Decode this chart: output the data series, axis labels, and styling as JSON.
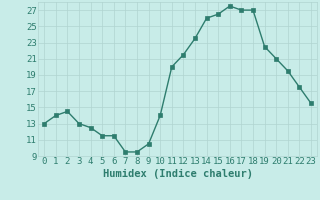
{
  "x": [
    0,
    1,
    2,
    3,
    4,
    5,
    6,
    7,
    8,
    9,
    10,
    11,
    12,
    13,
    14,
    15,
    16,
    17,
    18,
    19,
    20,
    21,
    22,
    23
  ],
  "y": [
    13,
    14,
    14.5,
    13,
    12.5,
    11.5,
    11.5,
    9.5,
    9.5,
    10.5,
    14,
    20,
    21.5,
    23.5,
    26,
    26.5,
    27.5,
    27,
    27,
    22.5,
    21,
    19.5,
    17.5,
    15.5
  ],
  "line_color": "#2e7d6e",
  "marker_color": "#2e7d6e",
  "bg_color": "#c8ece8",
  "grid_color": "#b0d4d0",
  "xlabel": "Humidex (Indice chaleur)",
  "xlim": [
    -0.5,
    23.5
  ],
  "ylim": [
    9,
    28
  ],
  "yticks": [
    9,
    11,
    13,
    15,
    17,
    19,
    21,
    23,
    25,
    27
  ],
  "xtick_labels": [
    "0",
    "1",
    "2",
    "3",
    "4",
    "5",
    "6",
    "7",
    "8",
    "9",
    "10",
    "11",
    "12",
    "13",
    "14",
    "15",
    "16",
    "17",
    "18",
    "19",
    "20",
    "21",
    "22",
    "23"
  ],
  "xlabel_fontsize": 7.5,
  "tick_fontsize": 6.5,
  "marker_size": 2.5,
  "line_width": 1.0
}
